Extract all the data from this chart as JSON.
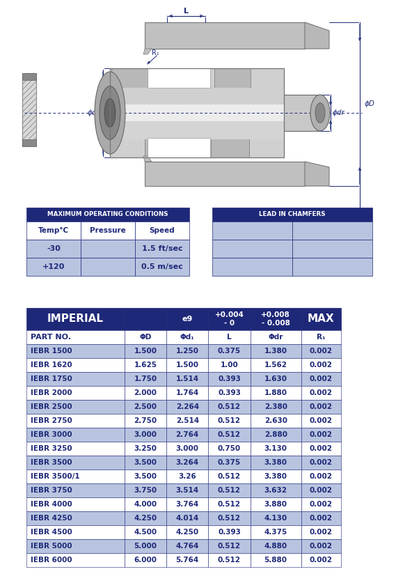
{
  "max_op_conditions": {
    "header": "MAXIMUM OPERATING CONDITIONS",
    "col_headers": [
      "Temp°C",
      "Pressure",
      "Speed"
    ],
    "rows": [
      [
        "-30",
        "",
        "1.5 ft/sec"
      ],
      [
        "+120",
        "",
        "0.5 m/sec"
      ]
    ]
  },
  "lead_in_chamfers": {
    "header": "LEAD IN CHAMFERS"
  },
  "imperial_table": {
    "header_row1": [
      "IMPERIAL",
      "",
      "e9",
      "+0.004\n- 0",
      "+0.008\n- 0.008",
      "MAX"
    ],
    "header_row2": [
      "PART NO.",
      "ΦD",
      "Φd₁",
      "L",
      "Φdr",
      "R₁"
    ],
    "rows": [
      [
        "IEBR 1500",
        "1.500",
        "1.250",
        "0.375",
        "1.380",
        "0.002"
      ],
      [
        "IEBR 1620",
        "1.625",
        "1.500",
        "1.00",
        "1.562",
        "0.002"
      ],
      [
        "IEBR 1750",
        "1.750",
        "1.514",
        "0.393",
        "1.630",
        "0.002"
      ],
      [
        "IEBR 2000",
        "2.000",
        "1.764",
        "0.393",
        "1.880",
        "0.002"
      ],
      [
        "IEBR 2500",
        "2.500",
        "2.264",
        "0.512",
        "2.380",
        "0.002"
      ],
      [
        "IEBR 2750",
        "2.750",
        "2.514",
        "0.512",
        "2.630",
        "0.002"
      ],
      [
        "IEBR 3000",
        "3.000",
        "2.764",
        "0.512",
        "2.880",
        "0.002"
      ],
      [
        "IEBR 3250",
        "3.250",
        "3.000",
        "0.750",
        "3.130",
        "0.002"
      ],
      [
        "IEBR 3500",
        "3.500",
        "3.264",
        "0.375",
        "3.380",
        "0.002"
      ],
      [
        "IEBR 3500/1",
        "3.500",
        "3.26",
        "0.512",
        "3.380",
        "0.002"
      ],
      [
        "IEBR 3750",
        "3.750",
        "3.514",
        "0.512",
        "3.632",
        "0.002"
      ],
      [
        "IEBR 4000",
        "4.000",
        "3.764",
        "0.512",
        "3.880",
        "0.002"
      ],
      [
        "IEBR 4250",
        "4.250",
        "4.014",
        "0.512",
        "4.130",
        "0.002"
      ],
      [
        "IEBR 4500",
        "4.500",
        "4.250",
        "0.393",
        "4.375",
        "0.002"
      ],
      [
        "IEBR 5000",
        "5.000",
        "4.764",
        "0.512",
        "4.880",
        "0.002"
      ],
      [
        "IEBR 6000",
        "6.000",
        "5.764",
        "0.512",
        "5.880",
        "0.002"
      ]
    ]
  },
  "colors": {
    "dark_blue": "#1e2878",
    "light_blue1": "#b8c4df",
    "light_blue2": "#ccd3e8",
    "white": "#ffffff",
    "text_blue": "#1e2878",
    "ann_blue": "#1e2878",
    "gray_body": "#c8c8c8",
    "gray_dark": "#999999",
    "gray_light": "#e8e8e8",
    "gray_med": "#b0b0b0"
  }
}
